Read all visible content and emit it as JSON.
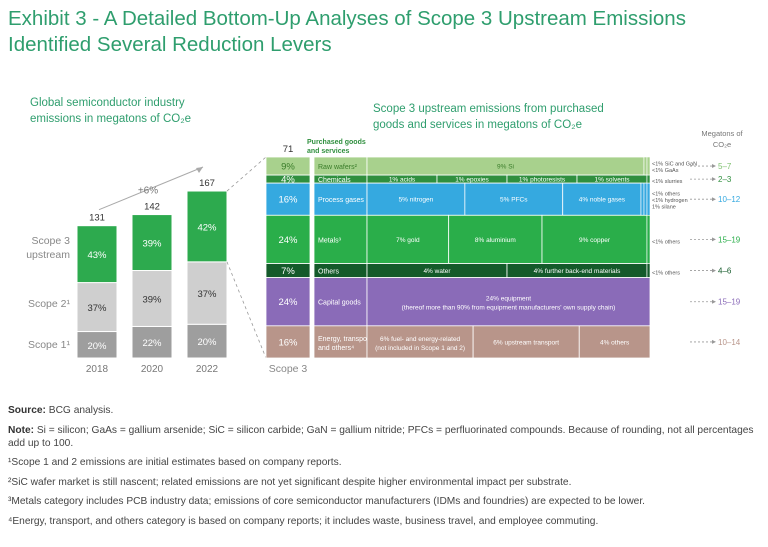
{
  "title": "Exhibit 3 - A Detailed Bottom-Up Analyses of Scope 3 Upstream Emissions Identified Several Reduction Levers",
  "chart_data": [
    {
      "type": "bar",
      "title": "Global semiconductor industry emissions in megatons of CO₂e",
      "categories": [
        "2018",
        "2020",
        "2022"
      ],
      "totals": [
        "131",
        "142",
        "167"
      ],
      "growth_label": "+6%",
      "series": [
        {
          "name": "Scope 1¹",
          "values": [
            20,
            22,
            20
          ],
          "labels": [
            "20%",
            "22%",
            "20%"
          ],
          "color": "#9e9e9e"
        },
        {
          "name": "Scope 2¹",
          "values": [
            37,
            39,
            37
          ],
          "labels": [
            "37%",
            "39%",
            "37%"
          ],
          "color": "#cfcfcf"
        },
        {
          "name": "Scope 3 upstream",
          "values": [
            43,
            39,
            42
          ],
          "labels": [
            "43%",
            "39%",
            "42%"
          ],
          "color": "#2daa4e"
        }
      ],
      "scope3_label": "Scope 3"
    },
    {
      "type": "table",
      "title": "Scope 3 upstream emissions from purchased goods and services in megatons of CO₂e",
      "total": "71",
      "total_label": "Purchased goods and services",
      "unit_header": "Megatons of CO₂e",
      "categories": [
        {
          "name": "Raw wafers²",
          "share": 9,
          "pct": "9%",
          "range": "5–7",
          "color": "#a8d18d",
          "items": [
            {
              "label": "9% Si",
              "value": 9
            }
          ],
          "small": [
            "<1% SiC and GaN",
            "<1% GaAs"
          ]
        },
        {
          "name": "Chemicals",
          "share": 4,
          "pct": "4%",
          "range": "2–3",
          "color": "#2f8f3e",
          "items": [
            {
              "label": "1% acids",
              "value": 1
            },
            {
              "label": "1% epoxies",
              "value": 1
            },
            {
              "label": "1% photoresists",
              "value": 1
            },
            {
              "label": "1% solvents",
              "value": 1
            }
          ],
          "small": [
            "<1% slurries"
          ]
        },
        {
          "name": "Process gases",
          "share": 16,
          "pct": "16%",
          "range": "10–12",
          "color": "#35a9e0",
          "items": [
            {
              "label": "5% nitrogen",
              "value": 5
            },
            {
              "label": "5% PFCs",
              "value": 5
            },
            {
              "label": "4% noble gases",
              "value": 4
            }
          ],
          "small": [
            "<1% others",
            "<1% hydrogen",
            "1% silane"
          ]
        },
        {
          "name": "Metals³",
          "share": 24,
          "pct": "24%",
          "range": "15–19",
          "color": "#2aae4a",
          "items": [
            {
              "label": "7% gold",
              "value": 7
            },
            {
              "label": "8% aluminium",
              "value": 8
            },
            {
              "label": "9% copper",
              "value": 9
            }
          ],
          "small": [
            "<1% others"
          ]
        },
        {
          "name": "Others",
          "share": 7,
          "pct": "7%",
          "range": "4–6",
          "color": "#145a2a",
          "items": [
            {
              "label": "4% water",
              "value": 4
            },
            {
              "label": "4% further back-end materials",
              "value": 4
            }
          ],
          "small": [
            "<1% others"
          ]
        },
        {
          "name": "Capital goods",
          "share": 24,
          "pct": "24%",
          "range": "15–19",
          "color": "#8a6bb8",
          "items": [
            {
              "label": "24% equipment",
              "sub": "(thereof more than 90% from equipment manufacturers' own supply chain)",
              "value": 24
            }
          ],
          "small": []
        },
        {
          "name": "Energy, transport, and others⁴",
          "share": 16,
          "pct": "16%",
          "range": "10–14",
          "color": "#b8958a",
          "items": [
            {
              "label": "6% fuel- and energy-related",
              "sub": "(not included in Scope 1 and 2)",
              "value": 6
            },
            {
              "label": "6% upstream transport",
              "value": 6
            },
            {
              "label": "4% others",
              "value": 4
            }
          ],
          "small": []
        }
      ]
    }
  ],
  "notes": {
    "source_label": "Source:",
    "source": "BCG analysis.",
    "note_label": "Note:",
    "note": "Si = silicon; GaAs = gallium arsenide; SiC = silicon carbide; GaN = gallium nitride; PFCs = perfluorinated compounds. Because of rounding, not all percentages add up to 100.",
    "fn1": "¹Scope 1 and 2 emissions are initial estimates based on company reports.",
    "fn2": "²SiC wafer market is still nascent; related emissions are not yet significant despite higher environmental impact per substrate.",
    "fn3": "³Metals category includes PCB industry data; emissions of core semiconductor manufacturers (IDMs and foundries) are expected to be lower.",
    "fn4": "⁴Energy, transport, and others category is based on company reports; it includes waste, business travel, and employee commuting."
  }
}
